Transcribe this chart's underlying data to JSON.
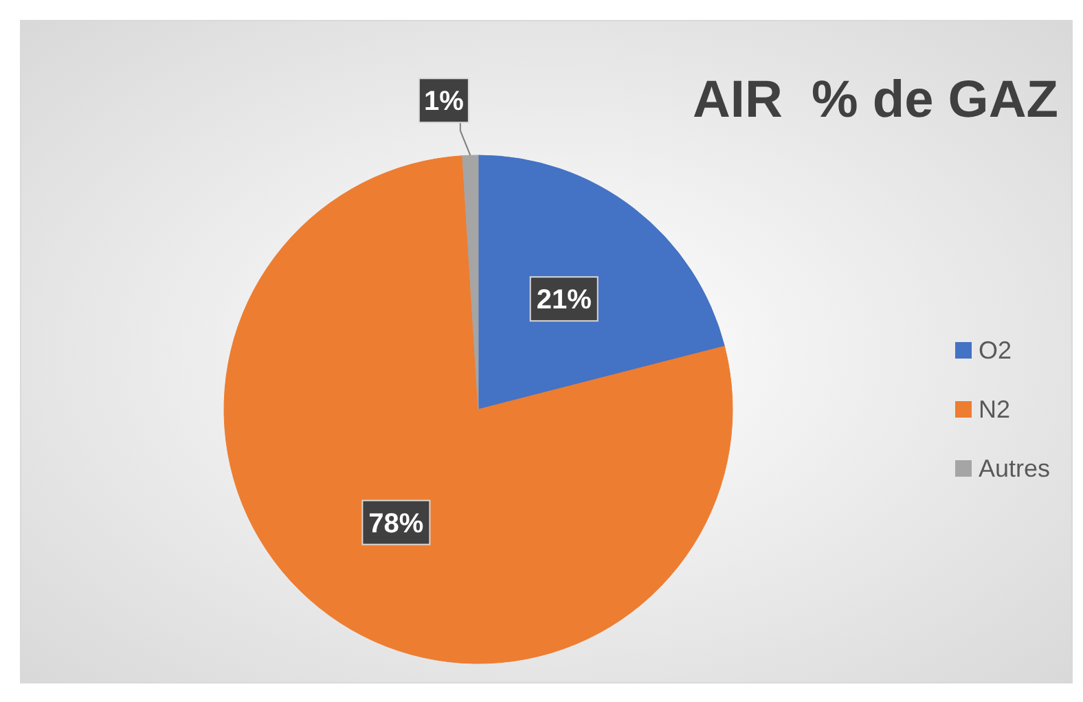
{
  "chart_data": {
    "type": "pie",
    "title": "AIR  % de GAZ",
    "categories": [
      "O2",
      "N2",
      "Autres"
    ],
    "values": [
      21,
      78,
      1
    ],
    "colors": [
      "#4472c4",
      "#ed7d31",
      "#a5a5a5"
    ],
    "value_labels": [
      "21%",
      "78%",
      "1%"
    ],
    "legend": "right"
  }
}
